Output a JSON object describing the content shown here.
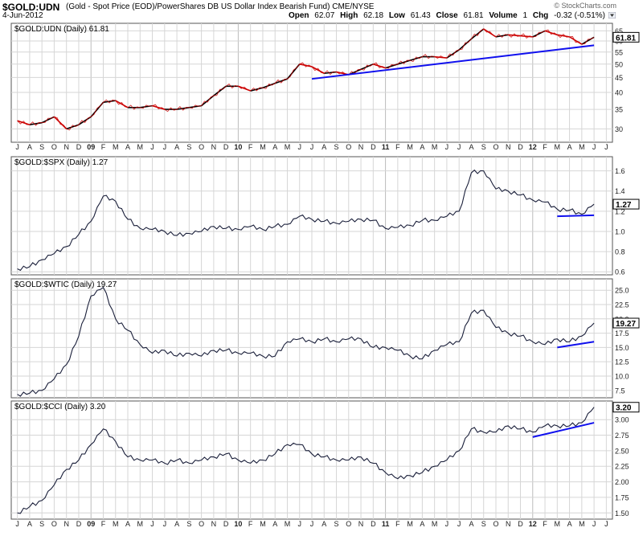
{
  "header": {
    "symbol": "$GOLD:UDN",
    "description": "(Gold - Spot Price (EOD)/PowerShares DB US Dollar Index Bearish Fund) CME/NYSE",
    "date": "4-Jun-2012",
    "watermark": "© StockCharts.com",
    "open_label": "Open",
    "open": "62.07",
    "high_label": "High",
    "high": "62.18",
    "low_label": "Low",
    "low": "61.43",
    "close_label": "Close",
    "close": "61.81",
    "volume_label": "Volume",
    "volume": "1",
    "chg_label": "Chg",
    "chg": "-0.32 (-0.51%)"
  },
  "colors": {
    "price_up": "#000000",
    "price_down": "#cc0000",
    "trendline": "#1010ee",
    "grid": "#d6d6d6",
    "frame": "#555555"
  },
  "time_axis": {
    "labels": [
      "J",
      "A",
      "S",
      "O",
      "N",
      "D",
      "09",
      "F",
      "M",
      "A",
      "M",
      "J",
      "J",
      "A",
      "S",
      "O",
      "N",
      "D",
      "10",
      "F",
      "M",
      "A",
      "M",
      "J",
      "J",
      "A",
      "S",
      "O",
      "N",
      "D",
      "11",
      "F",
      "M",
      "A",
      "M",
      "J",
      "J",
      "A",
      "S",
      "O",
      "N",
      "D",
      "12",
      "F",
      "M",
      "A",
      "M",
      "J",
      "J"
    ],
    "year_labels": [
      "09",
      "10",
      "11",
      "12"
    ]
  },
  "chart_data": [
    {
      "type": "line",
      "title": "$GOLD:UDN (Daily) 61.81",
      "last_value": "61.81",
      "y_scale": "log",
      "ylim": [
        27,
        69
      ],
      "y_ticks": [
        30,
        35,
        40,
        45,
        50,
        55,
        60,
        65
      ],
      "x_range": [
        "2008-07",
        "2012-06"
      ],
      "series": [
        {
          "points": [
            [
              "2008-07",
              32
            ],
            [
              "2008-08",
              31
            ],
            [
              "2008-09",
              31.5
            ],
            [
              "2008-10",
              33
            ],
            [
              "2008-11",
              30
            ],
            [
              "2008-12",
              31
            ],
            [
              "2009-01",
              33
            ],
            [
              "2009-02",
              37
            ],
            [
              "2009-03",
              37.5
            ],
            [
              "2009-04",
              35.5
            ],
            [
              "2009-05",
              35.5
            ],
            [
              "2009-06",
              36
            ],
            [
              "2009-07",
              35
            ],
            [
              "2009-08",
              35
            ],
            [
              "2009-09",
              35.5
            ],
            [
              "2009-10",
              36
            ],
            [
              "2009-11",
              39
            ],
            [
              "2009-12",
              42
            ],
            [
              "2010-01",
              42
            ],
            [
              "2010-02",
              40.5
            ],
            [
              "2010-03",
              41.5
            ],
            [
              "2010-04",
              43
            ],
            [
              "2010-05",
              44.5
            ],
            [
              "2010-06",
              50
            ],
            [
              "2010-07",
              49
            ],
            [
              "2010-08",
              46.5
            ],
            [
              "2010-09",
              47
            ],
            [
              "2010-10",
              46
            ],
            [
              "2010-11",
              48
            ],
            [
              "2010-12",
              50
            ],
            [
              "2011-01",
              48.5
            ],
            [
              "2011-02",
              50
            ],
            [
              "2011-03",
              51.5
            ],
            [
              "2011-04",
              53
            ],
            [
              "2011-05",
              53
            ],
            [
              "2011-06",
              52.5
            ],
            [
              "2011-07",
              56
            ],
            [
              "2011-08",
              61
            ],
            [
              "2011-09",
              66
            ],
            [
              "2011-10",
              62
            ],
            [
              "2011-11",
              63
            ],
            [
              "2011-12",
              62.5
            ],
            [
              "2012-01",
              62
            ],
            [
              "2012-02",
              65
            ],
            [
              "2012-03",
              63
            ],
            [
              "2012-04",
              62
            ],
            [
              "2012-05",
              58.5
            ],
            [
              "2012-06",
              61.81
            ]
          ]
        }
      ],
      "trendline": [
        [
          "2010-07",
          44.5
        ],
        [
          "2012-06",
          58
        ]
      ]
    },
    {
      "type": "line",
      "title": "$GOLD:$SPX (Daily) 1.27",
      "last_value": "1.27",
      "y_scale": "linear",
      "ylim": [
        0.57,
        1.74
      ],
      "y_ticks": [
        0.6,
        0.8,
        1.0,
        1.2,
        1.4,
        1.6
      ],
      "x_range": [
        "2008-07",
        "2012-06"
      ],
      "series": [
        {
          "points": [
            [
              "2008-07",
              0.63
            ],
            [
              "2008-08",
              0.65
            ],
            [
              "2008-09",
              0.72
            ],
            [
              "2008-10",
              0.78
            ],
            [
              "2008-11",
              0.85
            ],
            [
              "2008-12",
              0.97
            ],
            [
              "2009-01",
              1.1
            ],
            [
              "2009-02",
              1.35
            ],
            [
              "2009-03",
              1.3
            ],
            [
              "2009-04",
              1.12
            ],
            [
              "2009-05",
              1.03
            ],
            [
              "2009-06",
              1.02
            ],
            [
              "2009-07",
              1.0
            ],
            [
              "2009-08",
              0.96
            ],
            [
              "2009-09",
              0.98
            ],
            [
              "2009-10",
              1.0
            ],
            [
              "2009-11",
              1.05
            ],
            [
              "2009-12",
              1.03
            ],
            [
              "2010-01",
              1.02
            ],
            [
              "2010-02",
              1.05
            ],
            [
              "2010-03",
              1.02
            ],
            [
              "2010-04",
              1.05
            ],
            [
              "2010-05",
              1.07
            ],
            [
              "2010-06",
              1.15
            ],
            [
              "2010-07",
              1.12
            ],
            [
              "2010-08",
              1.1
            ],
            [
              "2010-09",
              1.08
            ],
            [
              "2010-10",
              1.1
            ],
            [
              "2010-11",
              1.12
            ],
            [
              "2010-12",
              1.11
            ],
            [
              "2011-01",
              1.03
            ],
            [
              "2011-02",
              1.04
            ],
            [
              "2011-03",
              1.06
            ],
            [
              "2011-04",
              1.11
            ],
            [
              "2011-05",
              1.11
            ],
            [
              "2011-06",
              1.15
            ],
            [
              "2011-07",
              1.2
            ],
            [
              "2011-08",
              1.58
            ],
            [
              "2011-09",
              1.6
            ],
            [
              "2011-10",
              1.42
            ],
            [
              "2011-11",
              1.4
            ],
            [
              "2011-12",
              1.36
            ],
            [
              "2012-01",
              1.31
            ],
            [
              "2012-02",
              1.29
            ],
            [
              "2012-03",
              1.22
            ],
            [
              "2012-04",
              1.21
            ],
            [
              "2012-05",
              1.17
            ],
            [
              "2012-06",
              1.27
            ]
          ]
        }
      ],
      "trendline": [
        [
          "2012-03",
          1.15
        ],
        [
          "2012-06",
          1.16
        ]
      ]
    },
    {
      "type": "line",
      "title": "$GOLD:$WTIC (Daily) 19.27",
      "last_value": "19.27",
      "y_scale": "linear",
      "ylim": [
        6.2,
        27.0
      ],
      "y_ticks": [
        7.5,
        10.0,
        12.5,
        15.0,
        17.5,
        20.0,
        22.5,
        25.0
      ],
      "x_range": [
        "2008-07",
        "2012-06"
      ],
      "series": [
        {
          "points": [
            [
              "2008-07",
              6.8
            ],
            [
              "2008-08",
              7.0
            ],
            [
              "2008-09",
              7.5
            ],
            [
              "2008-10",
              9.5
            ],
            [
              "2008-11",
              12.0
            ],
            [
              "2008-12",
              17.0
            ],
            [
              "2009-01",
              24.0
            ],
            [
              "2009-02",
              25.5
            ],
            [
              "2009-03",
              20.0
            ],
            [
              "2009-04",
              18.0
            ],
            [
              "2009-05",
              15.5
            ],
            [
              "2009-06",
              14.0
            ],
            [
              "2009-07",
              14.5
            ],
            [
              "2009-08",
              13.5
            ],
            [
              "2009-09",
              14.0
            ],
            [
              "2009-10",
              13.5
            ],
            [
              "2009-11",
              14.5
            ],
            [
              "2009-12",
              14.5
            ],
            [
              "2010-01",
              14.0
            ],
            [
              "2010-02",
              14.0
            ],
            [
              "2010-03",
              13.5
            ],
            [
              "2010-04",
              13.5
            ],
            [
              "2010-05",
              16.0
            ],
            [
              "2010-06",
              16.5
            ],
            [
              "2010-07",
              16.0
            ],
            [
              "2010-08",
              16.5
            ],
            [
              "2010-09",
              16.0
            ],
            [
              "2010-10",
              16.5
            ],
            [
              "2010-11",
              16.5
            ],
            [
              "2010-12",
              15.0
            ],
            [
              "2011-01",
              15.0
            ],
            [
              "2011-02",
              14.5
            ],
            [
              "2011-03",
              13.5
            ],
            [
              "2011-04",
              13.0
            ],
            [
              "2011-05",
              14.5
            ],
            [
              "2011-06",
              15.5
            ],
            [
              "2011-07",
              16.0
            ],
            [
              "2011-08",
              21.0
            ],
            [
              "2011-09",
              21.5
            ],
            [
              "2011-10",
              18.5
            ],
            [
              "2011-11",
              17.5
            ],
            [
              "2011-12",
              17.0
            ],
            [
              "2012-01",
              16.0
            ],
            [
              "2012-02",
              15.5
            ],
            [
              "2012-03",
              16.5
            ],
            [
              "2012-04",
              16.0
            ],
            [
              "2012-05",
              17.0
            ],
            [
              "2012-06",
              19.27
            ]
          ]
        }
      ],
      "trendline": [
        [
          "2012-03",
          15.0
        ],
        [
          "2012-06",
          16.0
        ]
      ]
    },
    {
      "type": "line",
      "title": "$GOLD:$CCI (Daily) 3.20",
      "last_value": "3.20",
      "y_scale": "linear",
      "ylim": [
        1.4,
        3.3
      ],
      "y_ticks": [
        1.5,
        1.75,
        2.0,
        2.25,
        2.5,
        2.75,
        3.0
      ],
      "x_range": [
        "2008-07",
        "2012-06"
      ],
      "series": [
        {
          "points": [
            [
              "2008-07",
              1.5
            ],
            [
              "2008-08",
              1.6
            ],
            [
              "2008-09",
              1.7
            ],
            [
              "2008-10",
              1.95
            ],
            [
              "2008-11",
              2.2
            ],
            [
              "2008-12",
              2.35
            ],
            [
              "2009-01",
              2.6
            ],
            [
              "2009-02",
              2.85
            ],
            [
              "2009-03",
              2.65
            ],
            [
              "2009-04",
              2.4
            ],
            [
              "2009-05",
              2.35
            ],
            [
              "2009-06",
              2.35
            ],
            [
              "2009-07",
              2.3
            ],
            [
              "2009-08",
              2.35
            ],
            [
              "2009-09",
              2.3
            ],
            [
              "2009-10",
              2.35
            ],
            [
              "2009-11",
              2.4
            ],
            [
              "2009-12",
              2.45
            ],
            [
              "2010-01",
              2.35
            ],
            [
              "2010-02",
              2.3
            ],
            [
              "2010-03",
              2.35
            ],
            [
              "2010-04",
              2.45
            ],
            [
              "2010-05",
              2.6
            ],
            [
              "2010-06",
              2.6
            ],
            [
              "2010-07",
              2.45
            ],
            [
              "2010-08",
              2.4
            ],
            [
              "2010-09",
              2.35
            ],
            [
              "2010-10",
              2.35
            ],
            [
              "2010-11",
              2.4
            ],
            [
              "2010-12",
              2.3
            ],
            [
              "2011-01",
              2.15
            ],
            [
              "2011-02",
              2.05
            ],
            [
              "2011-03",
              2.1
            ],
            [
              "2011-04",
              2.15
            ],
            [
              "2011-05",
              2.25
            ],
            [
              "2011-06",
              2.35
            ],
            [
              "2011-07",
              2.5
            ],
            [
              "2011-08",
              2.85
            ],
            [
              "2011-09",
              2.8
            ],
            [
              "2011-10",
              2.8
            ],
            [
              "2011-11",
              2.9
            ],
            [
              "2011-12",
              2.85
            ],
            [
              "2012-01",
              2.8
            ],
            [
              "2012-02",
              2.9
            ],
            [
              "2012-03",
              2.9
            ],
            [
              "2012-04",
              2.9
            ],
            [
              "2012-05",
              2.95
            ],
            [
              "2012-06",
              3.2
            ]
          ]
        }
      ],
      "trendline": [
        [
          "2012-01",
          2.72
        ],
        [
          "2012-06",
          2.95
        ]
      ]
    }
  ]
}
